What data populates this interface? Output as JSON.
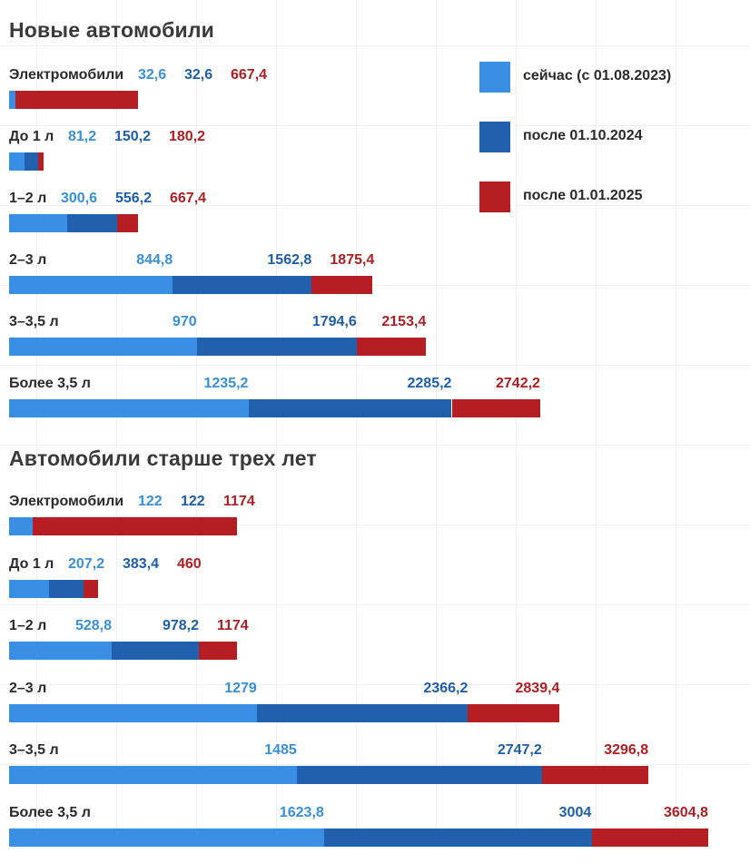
{
  "colors": {
    "current": "#3a8fe5",
    "after_2024": "#2160ad",
    "after_2025": "#b51f24",
    "current_text": "#3a8fd9",
    "after_2024_text": "#1f5ea8",
    "after_2025_text": "#b01e23"
  },
  "legend": [
    {
      "label": "сейчас (с 01.08.2023)",
      "color": "#3a8fe5"
    },
    {
      "label": "после 01.10.2024",
      "color": "#2160ad"
    },
    {
      "label": "после 01.01.2025",
      "color": "#b51f24"
    }
  ],
  "chart_data": [
    {
      "type": "bar",
      "orientation": "horizontal",
      "stacking": "overlapping cumulative",
      "title": "Новые автомобили",
      "categories": [
        "Электромобили",
        "До 1 л",
        "1–2 л",
        "2–3 л",
        "3–3,5 л",
        "Более 3,5 л"
      ],
      "series": [
        {
          "name": "сейчас (с 01.08.2023)",
          "values": [
            32.6,
            81.2,
            300.6,
            844.8,
            970,
            1235.2
          ],
          "labels": [
            "32,6",
            "81,2",
            "300,6",
            "844,8",
            "970",
            "1235,2"
          ]
        },
        {
          "name": "после 01.10.2024",
          "values": [
            32.6,
            150.2,
            556.2,
            1562.8,
            1794.6,
            2285.2
          ],
          "labels": [
            "32,6",
            "150,2",
            "556,2",
            "1562,8",
            "1794,6",
            "2285,2"
          ]
        },
        {
          "name": "после 01.01.2025",
          "values": [
            667.4,
            180.2,
            667.4,
            1875.4,
            2153.4,
            2742.2
          ],
          "labels": [
            "667,4",
            "180,2",
            "667,4",
            "1875,4",
            "2153,4",
            "2742,2"
          ]
        }
      ],
      "legend": "top-right"
    },
    {
      "type": "bar",
      "orientation": "horizontal",
      "stacking": "overlapping cumulative",
      "title": "Автомобили старше трех лет",
      "categories": [
        "Электромобили",
        "До 1 л",
        "1–2 л",
        "2–3 л",
        "3–3,5 л",
        "Более 3,5 л"
      ],
      "series": [
        {
          "name": "сейчас (с 01.08.2023)",
          "values": [
            122,
            207.2,
            528.8,
            1279,
            1485,
            1623.8
          ],
          "labels": [
            "122",
            "207,2",
            "528,8",
            "1279",
            "1485",
            "1623,8"
          ]
        },
        {
          "name": "после 01.10.2024",
          "values": [
            122,
            383.4,
            978.2,
            2366.2,
            2747.2,
            3004
          ],
          "labels": [
            "122",
            "383,4",
            "978,2",
            "2366,2",
            "2747,2",
            "3004"
          ]
        },
        {
          "name": "после 01.01.2025",
          "values": [
            1174,
            460,
            1174,
            2839.4,
            3296.8,
            3604.8
          ],
          "labels": [
            "1174",
            "460",
            "1174",
            "2839,4",
            "3296,8",
            "3604,8"
          ]
        }
      ]
    }
  ]
}
